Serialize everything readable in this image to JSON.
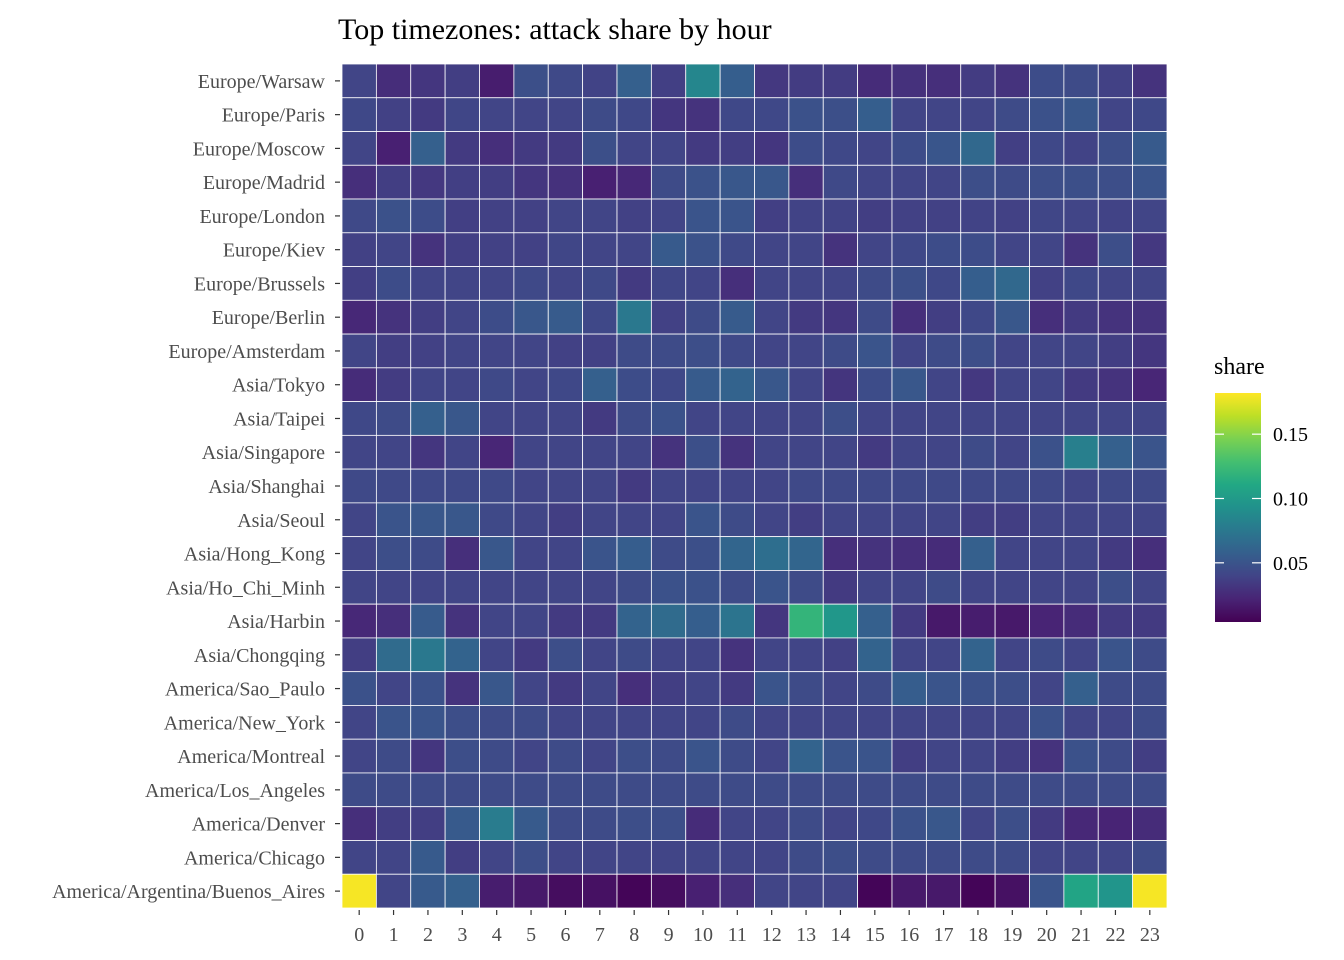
{
  "chart_data": {
    "type": "heatmap",
    "title": "Top timezones: attack share by hour",
    "xlabel": "",
    "ylabel": "",
    "x": [
      "0",
      "1",
      "2",
      "3",
      "4",
      "5",
      "6",
      "7",
      "8",
      "9",
      "10",
      "11",
      "12",
      "13",
      "14",
      "15",
      "16",
      "17",
      "18",
      "19",
      "20",
      "21",
      "22",
      "23"
    ],
    "y": [
      "Europe/Warsaw",
      "Europe/Paris",
      "Europe/Moscow",
      "Europe/Madrid",
      "Europe/London",
      "Europe/Kiev",
      "Europe/Brussels",
      "Europe/Berlin",
      "Europe/Amsterdam",
      "Asia/Tokyo",
      "Asia/Taipei",
      "Asia/Singapore",
      "Asia/Shanghai",
      "Asia/Seoul",
      "Asia/Hong_Kong",
      "Asia/Ho_Chi_Minh",
      "Asia/Harbin",
      "Asia/Chongqing",
      "America/Sao_Paulo",
      "America/New_York",
      "America/Montreal",
      "America/Los_Angeles",
      "America/Denver",
      "America/Chicago",
      "America/Argentina/Buenos_Aires"
    ],
    "values": [
      [
        0.04,
        0.027,
        0.032,
        0.036,
        0.018,
        0.047,
        0.043,
        0.039,
        0.058,
        0.037,
        0.085,
        0.057,
        0.033,
        0.035,
        0.035,
        0.026,
        0.029,
        0.028,
        0.035,
        0.03,
        0.045,
        0.044,
        0.038,
        0.03
      ],
      [
        0.042,
        0.038,
        0.034,
        0.041,
        0.04,
        0.04,
        0.04,
        0.044,
        0.042,
        0.032,
        0.03,
        0.042,
        0.042,
        0.048,
        0.047,
        0.057,
        0.04,
        0.04,
        0.04,
        0.044,
        0.048,
        0.052,
        0.04,
        0.042
      ],
      [
        0.04,
        0.02,
        0.058,
        0.034,
        0.028,
        0.034,
        0.034,
        0.047,
        0.04,
        0.04,
        0.034,
        0.036,
        0.032,
        0.045,
        0.042,
        0.04,
        0.045,
        0.051,
        0.064,
        0.037,
        0.042,
        0.039,
        0.046,
        0.054
      ],
      [
        0.028,
        0.036,
        0.033,
        0.037,
        0.036,
        0.032,
        0.029,
        0.02,
        0.024,
        0.044,
        0.049,
        0.052,
        0.052,
        0.028,
        0.043,
        0.04,
        0.04,
        0.04,
        0.046,
        0.044,
        0.046,
        0.047,
        0.046,
        0.05
      ],
      [
        0.043,
        0.048,
        0.045,
        0.037,
        0.038,
        0.038,
        0.04,
        0.04,
        0.038,
        0.04,
        0.05,
        0.05,
        0.037,
        0.039,
        0.039,
        0.036,
        0.038,
        0.038,
        0.039,
        0.038,
        0.041,
        0.04,
        0.039,
        0.04
      ],
      [
        0.038,
        0.04,
        0.03,
        0.037,
        0.038,
        0.038,
        0.041,
        0.04,
        0.04,
        0.054,
        0.049,
        0.043,
        0.04,
        0.04,
        0.03,
        0.04,
        0.042,
        0.045,
        0.045,
        0.04,
        0.04,
        0.03,
        0.046,
        0.033
      ],
      [
        0.037,
        0.045,
        0.04,
        0.04,
        0.04,
        0.043,
        0.04,
        0.043,
        0.034,
        0.041,
        0.04,
        0.028,
        0.04,
        0.04,
        0.04,
        0.044,
        0.047,
        0.042,
        0.057,
        0.064,
        0.038,
        0.042,
        0.04,
        0.04
      ],
      [
        0.024,
        0.03,
        0.036,
        0.04,
        0.045,
        0.052,
        0.055,
        0.042,
        0.075,
        0.038,
        0.044,
        0.055,
        0.04,
        0.034,
        0.032,
        0.044,
        0.028,
        0.036,
        0.042,
        0.052,
        0.028,
        0.034,
        0.03,
        0.03
      ],
      [
        0.04,
        0.036,
        0.038,
        0.04,
        0.04,
        0.04,
        0.038,
        0.038,
        0.044,
        0.044,
        0.046,
        0.043,
        0.04,
        0.04,
        0.044,
        0.05,
        0.04,
        0.044,
        0.046,
        0.04,
        0.04,
        0.04,
        0.036,
        0.032
      ],
      [
        0.026,
        0.035,
        0.04,
        0.04,
        0.043,
        0.04,
        0.042,
        0.058,
        0.045,
        0.042,
        0.055,
        0.06,
        0.052,
        0.04,
        0.031,
        0.045,
        0.052,
        0.04,
        0.033,
        0.04,
        0.04,
        0.034,
        0.03,
        0.023
      ],
      [
        0.042,
        0.044,
        0.058,
        0.052,
        0.04,
        0.04,
        0.04,
        0.034,
        0.044,
        0.048,
        0.04,
        0.04,
        0.04,
        0.04,
        0.046,
        0.04,
        0.04,
        0.04,
        0.04,
        0.04,
        0.04,
        0.04,
        0.04,
        0.04
      ],
      [
        0.04,
        0.04,
        0.032,
        0.04,
        0.023,
        0.04,
        0.04,
        0.04,
        0.04,
        0.03,
        0.047,
        0.03,
        0.04,
        0.04,
        0.04,
        0.034,
        0.04,
        0.04,
        0.044,
        0.04,
        0.048,
        0.08,
        0.058,
        0.05
      ],
      [
        0.043,
        0.043,
        0.043,
        0.043,
        0.043,
        0.04,
        0.04,
        0.04,
        0.034,
        0.04,
        0.04,
        0.04,
        0.04,
        0.043,
        0.043,
        0.043,
        0.043,
        0.043,
        0.043,
        0.043,
        0.043,
        0.04,
        0.043,
        0.043
      ],
      [
        0.04,
        0.05,
        0.052,
        0.052,
        0.043,
        0.04,
        0.036,
        0.04,
        0.04,
        0.04,
        0.05,
        0.044,
        0.04,
        0.036,
        0.04,
        0.04,
        0.04,
        0.04,
        0.036,
        0.036,
        0.04,
        0.04,
        0.04,
        0.04
      ],
      [
        0.04,
        0.046,
        0.044,
        0.028,
        0.052,
        0.04,
        0.04,
        0.05,
        0.056,
        0.044,
        0.047,
        0.062,
        0.068,
        0.062,
        0.028,
        0.03,
        0.028,
        0.026,
        0.058,
        0.04,
        0.04,
        0.04,
        0.034,
        0.028
      ],
      [
        0.04,
        0.04,
        0.04,
        0.04,
        0.04,
        0.04,
        0.04,
        0.04,
        0.044,
        0.048,
        0.048,
        0.044,
        0.05,
        0.044,
        0.034,
        0.04,
        0.04,
        0.044,
        0.04,
        0.04,
        0.04,
        0.04,
        0.046,
        0.04
      ],
      [
        0.024,
        0.028,
        0.055,
        0.03,
        0.04,
        0.04,
        0.034,
        0.034,
        0.06,
        0.066,
        0.057,
        0.072,
        0.032,
        0.12,
        0.098,
        0.058,
        0.034,
        0.016,
        0.018,
        0.016,
        0.022,
        0.026,
        0.034,
        0.034
      ],
      [
        0.036,
        0.066,
        0.075,
        0.06,
        0.04,
        0.034,
        0.046,
        0.04,
        0.044,
        0.04,
        0.04,
        0.03,
        0.04,
        0.04,
        0.038,
        0.06,
        0.04,
        0.04,
        0.06,
        0.04,
        0.044,
        0.04,
        0.05,
        0.044
      ],
      [
        0.048,
        0.04,
        0.048,
        0.03,
        0.052,
        0.04,
        0.034,
        0.04,
        0.028,
        0.036,
        0.04,
        0.034,
        0.05,
        0.044,
        0.04,
        0.044,
        0.056,
        0.05,
        0.048,
        0.046,
        0.04,
        0.058,
        0.044,
        0.044
      ],
      [
        0.04,
        0.05,
        0.05,
        0.046,
        0.044,
        0.044,
        0.04,
        0.04,
        0.04,
        0.04,
        0.04,
        0.044,
        0.04,
        0.04,
        0.04,
        0.04,
        0.04,
        0.04,
        0.04,
        0.04,
        0.048,
        0.04,
        0.04,
        0.044
      ],
      [
        0.04,
        0.044,
        0.032,
        0.046,
        0.044,
        0.04,
        0.044,
        0.04,
        0.046,
        0.044,
        0.05,
        0.044,
        0.04,
        0.06,
        0.05,
        0.05,
        0.036,
        0.04,
        0.04,
        0.036,
        0.03,
        0.048,
        0.044,
        0.036
      ],
      [
        0.044,
        0.044,
        0.044,
        0.044,
        0.044,
        0.044,
        0.044,
        0.044,
        0.044,
        0.044,
        0.044,
        0.044,
        0.044,
        0.044,
        0.044,
        0.044,
        0.044,
        0.044,
        0.044,
        0.044,
        0.044,
        0.044,
        0.044,
        0.044
      ],
      [
        0.028,
        0.036,
        0.036,
        0.054,
        0.078,
        0.054,
        0.044,
        0.044,
        0.046,
        0.046,
        0.026,
        0.04,
        0.04,
        0.044,
        0.04,
        0.042,
        0.048,
        0.052,
        0.04,
        0.046,
        0.034,
        0.024,
        0.022,
        0.026
      ],
      [
        0.04,
        0.04,
        0.054,
        0.036,
        0.04,
        0.046,
        0.04,
        0.04,
        0.04,
        0.04,
        0.04,
        0.04,
        0.04,
        0.044,
        0.046,
        0.044,
        0.044,
        0.044,
        0.044,
        0.044,
        0.04,
        0.04,
        0.04,
        0.044
      ],
      [
        0.18,
        0.04,
        0.054,
        0.058,
        0.018,
        0.016,
        0.01,
        0.012,
        0.006,
        0.01,
        0.02,
        0.028,
        0.04,
        0.04,
        0.04,
        0.006,
        0.016,
        0.016,
        0.006,
        0.012,
        0.05,
        0.108,
        0.096,
        0.18
      ]
    ],
    "legend": {
      "title": "share",
      "min": 0.004,
      "max": 0.182,
      "ticks": [
        0.05,
        0.1,
        0.15
      ],
      "tick_labels": [
        "0.05",
        "0.10",
        "0.15"
      ],
      "placement": "right",
      "colormap": "viridis"
    },
    "grid": false
  }
}
